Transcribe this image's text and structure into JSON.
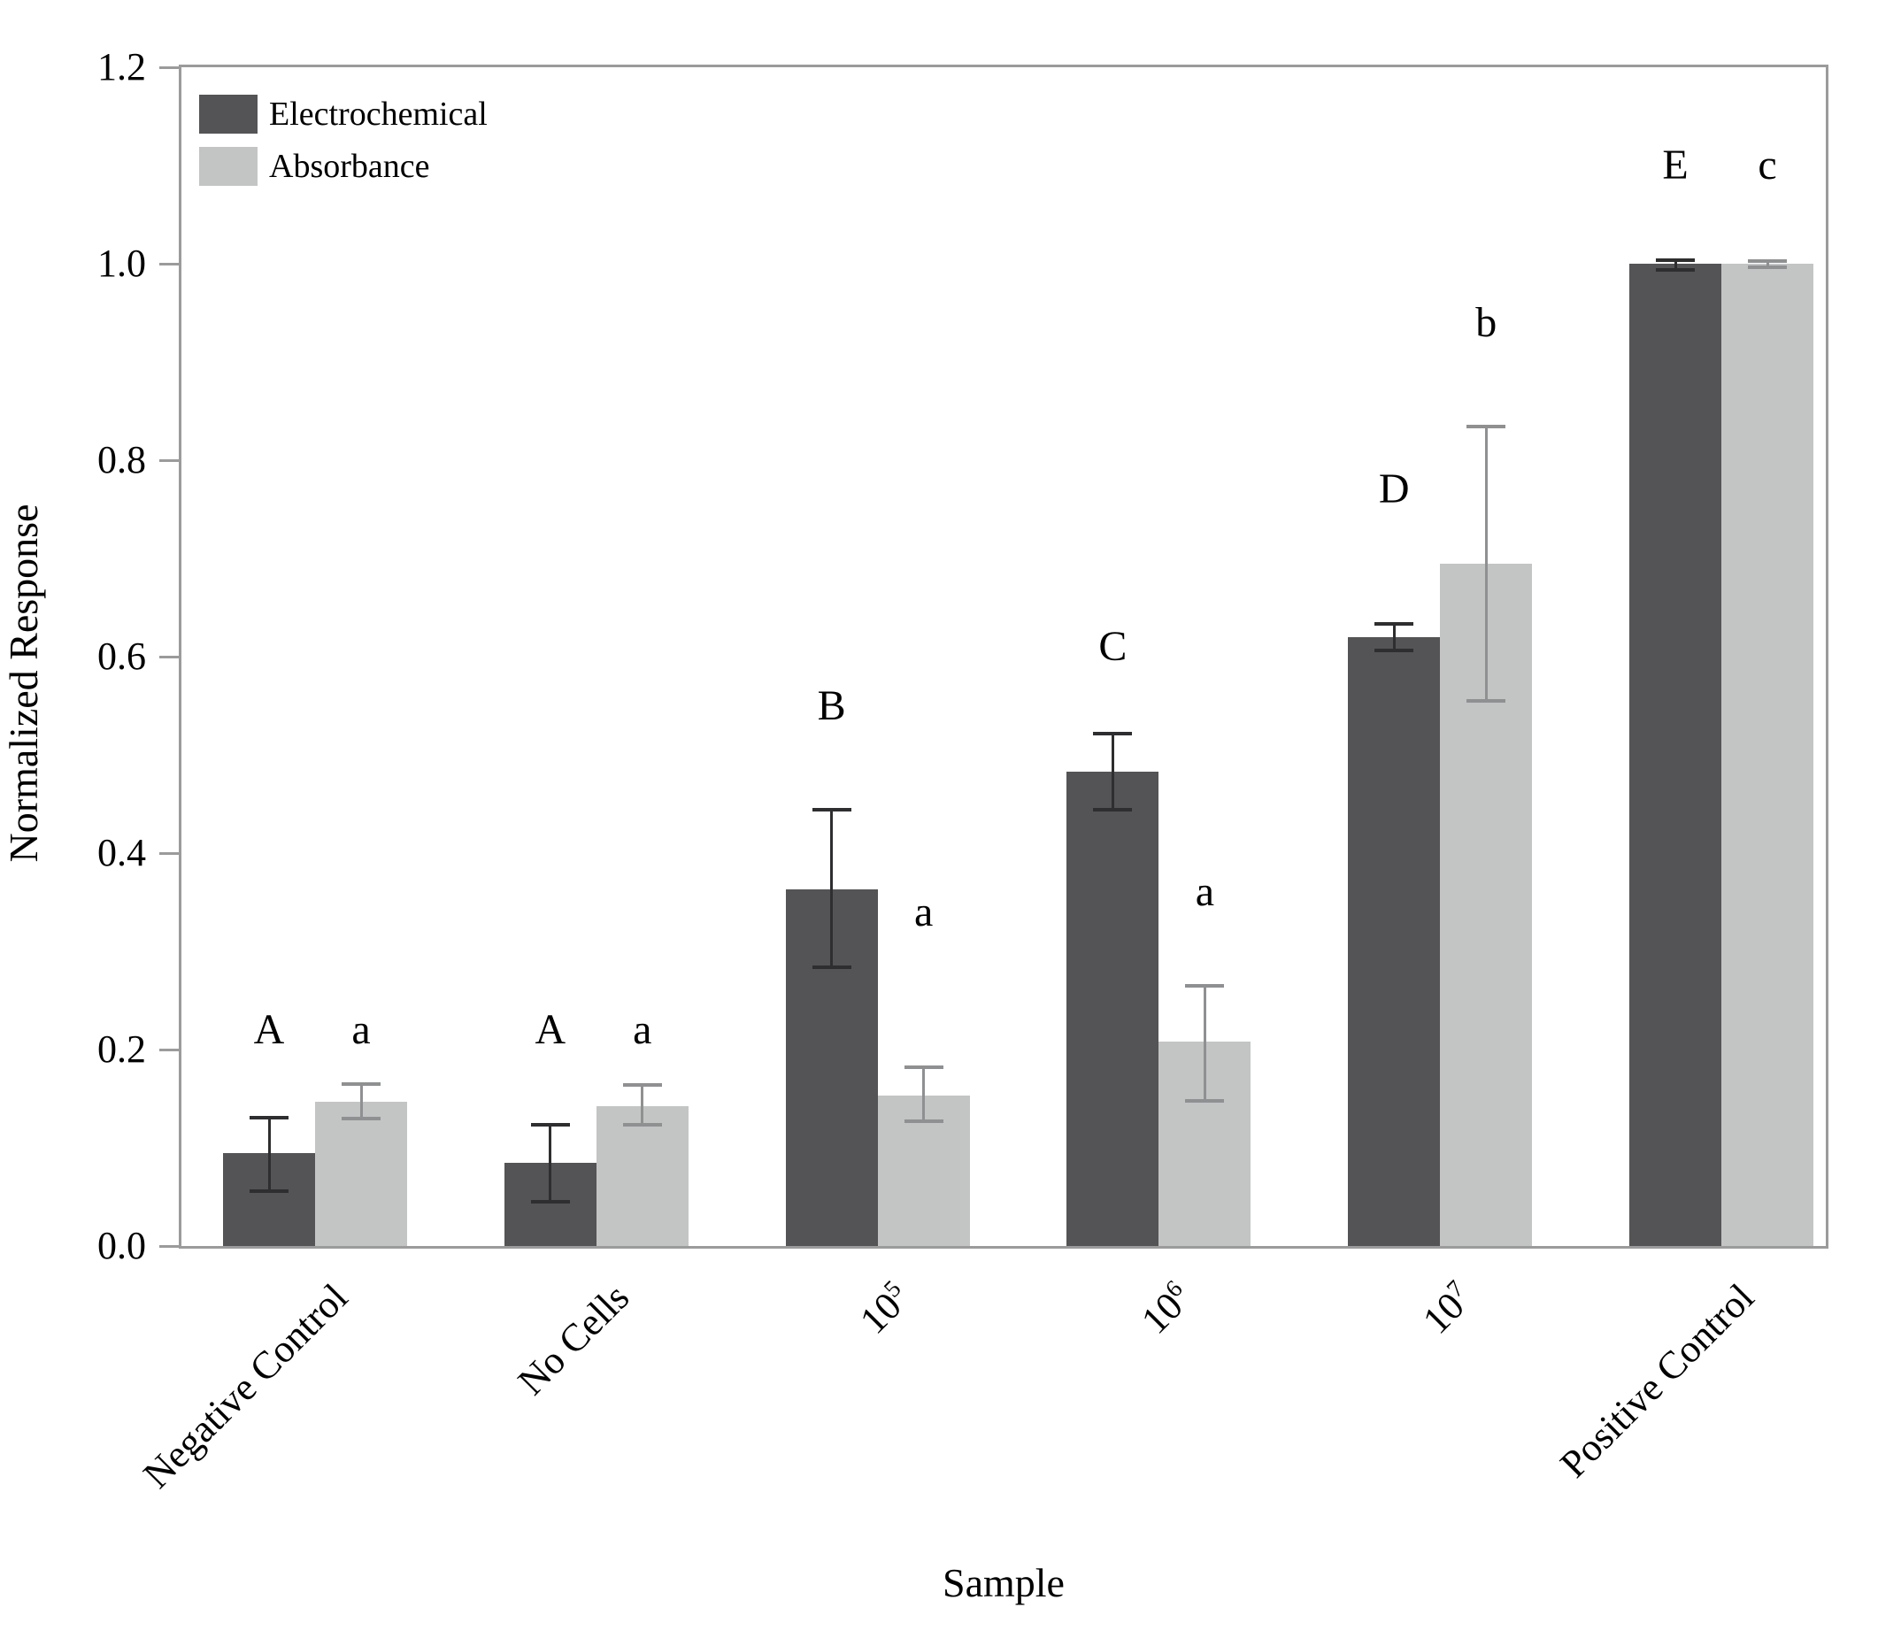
{
  "chart_data": {
    "type": "bar",
    "title": "",
    "xlabel": "Sample",
    "ylabel": "Normalized Response",
    "ylim": [
      0,
      1.2
    ],
    "grid": false,
    "legend_position": "top-left",
    "yticks": [
      {
        "v": 0.0,
        "label": "0.0"
      },
      {
        "v": 0.2,
        "label": "0.2"
      },
      {
        "v": 0.4,
        "label": "0.4"
      },
      {
        "v": 0.6,
        "label": "0.6"
      },
      {
        "v": 0.8,
        "label": "0.8"
      },
      {
        "v": 1.0,
        "label": "1.0"
      },
      {
        "v": 1.2,
        "label": "1.2"
      }
    ],
    "categories": [
      {
        "label": "Negative Control"
      },
      {
        "label": "No Cells"
      },
      {
        "label": "10",
        "exp": "5"
      },
      {
        "label": "10",
        "exp": "6"
      },
      {
        "label": "10",
        "exp": "7"
      },
      {
        "label": "Positive Control"
      }
    ],
    "series": [
      {
        "name": "Electrochemical",
        "color": "#545456",
        "error_color": "#2e2e30",
        "values": [
          0.095,
          0.085,
          0.363,
          0.483,
          0.62,
          1.0
        ],
        "err_up": [
          0.036,
          0.038,
          0.081,
          0.039,
          0.013,
          0.004
        ],
        "err_down": [
          0.039,
          0.04,
          0.079,
          0.039,
          0.014,
          0.006
        ],
        "letters": [
          "A",
          "A",
          "B",
          "C",
          "D",
          "E"
        ],
        "letter_y": [
          0.22,
          0.22,
          0.55,
          0.61,
          0.77,
          1.1
        ]
      },
      {
        "name": "Absorbance",
        "color": "#c3c4c4",
        "error_color": "#8f9092",
        "values": [
          0.147,
          0.142,
          0.153,
          0.208,
          0.695,
          1.0
        ],
        "err_up": [
          0.018,
          0.022,
          0.029,
          0.057,
          0.139,
          0.003
        ],
        "err_down": [
          0.017,
          0.019,
          0.026,
          0.06,
          0.14,
          0.004
        ],
        "letters": [
          "a",
          "a",
          "a",
          "a",
          "b",
          "c"
        ],
        "letter_y": [
          0.22,
          0.22,
          0.34,
          0.36,
          0.94,
          1.1
        ]
      }
    ],
    "axis_color": "#9b9b9b"
  }
}
